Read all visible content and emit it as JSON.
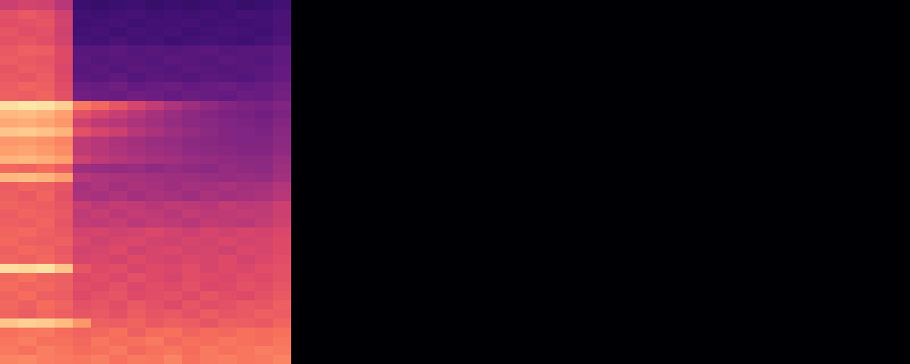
{
  "chart_data": {
    "type": "heatmap",
    "x": [
      0,
      1,
      2,
      3,
      4,
      5,
      6,
      7,
      8,
      9,
      10,
      11,
      12,
      13,
      14,
      15
    ],
    "y": [
      0,
      1,
      2,
      3,
      4,
      5,
      6,
      7,
      8,
      9,
      10,
      11,
      12,
      13,
      14,
      15,
      16,
      17,
      18,
      19,
      20,
      21,
      22,
      23,
      24,
      25,
      26,
      27,
      28,
      29,
      30,
      31,
      32,
      33,
      34,
      35,
      36,
      37,
      38,
      39
    ],
    "cells": [
      [
        0.74,
        0.75,
        0.73,
        0.72,
        0.71,
        0.73,
        0.7,
        0.72,
        0.71,
        0.74,
        0.7,
        0.72,
        0.73,
        0.71,
        0.72,
        0.74
      ],
      [
        0.72,
        0.7,
        0.73,
        0.71,
        0.69,
        0.7,
        0.72,
        0.68,
        0.7,
        0.71,
        0.69,
        0.72,
        0.7,
        0.71,
        0.73,
        0.72
      ],
      [
        0.71,
        0.73,
        0.7,
        0.7,
        0.68,
        0.71,
        0.69,
        0.7,
        0.72,
        0.68,
        0.7,
        0.69,
        0.71,
        0.7,
        0.69,
        0.71
      ],
      [
        0.7,
        0.71,
        0.72,
        0.69,
        0.67,
        0.68,
        0.7,
        0.66,
        0.69,
        0.7,
        0.67,
        0.69,
        0.68,
        0.7,
        0.69,
        0.7
      ],
      [
        0.88,
        0.9,
        0.89,
        0.86,
        0.78,
        0.66,
        0.65,
        0.67,
        0.64,
        0.66,
        0.65,
        0.63,
        0.66,
        0.65,
        0.64,
        0.67
      ],
      [
        0.67,
        0.65,
        0.68,
        0.66,
        0.63,
        0.64,
        0.62,
        0.65,
        0.63,
        0.64,
        0.62,
        0.65,
        0.63,
        0.64,
        0.66,
        0.65
      ],
      [
        0.68,
        0.66,
        0.69,
        0.67,
        0.62,
        0.63,
        0.61,
        0.64,
        0.62,
        0.6,
        0.63,
        0.61,
        0.62,
        0.64,
        0.63,
        0.66
      ],
      [
        0.67,
        0.69,
        0.66,
        0.65,
        0.6,
        0.62,
        0.63,
        0.6,
        0.61,
        0.62,
        0.6,
        0.63,
        0.61,
        0.6,
        0.62,
        0.64
      ],
      [
        0.69,
        0.67,
        0.68,
        0.66,
        0.61,
        0.6,
        0.62,
        0.59,
        0.61,
        0.6,
        0.62,
        0.59,
        0.6,
        0.62,
        0.61,
        0.63
      ],
      [
        0.68,
        0.7,
        0.67,
        0.66,
        0.6,
        0.61,
        0.59,
        0.62,
        0.6,
        0.58,
        0.61,
        0.6,
        0.59,
        0.61,
        0.6,
        0.62
      ],
      [
        0.93,
        0.92,
        0.94,
        0.88,
        0.63,
        0.6,
        0.61,
        0.58,
        0.6,
        0.59,
        0.61,
        0.58,
        0.6,
        0.59,
        0.61,
        0.62
      ],
      [
        0.67,
        0.66,
        0.68,
        0.65,
        0.58,
        0.59,
        0.57,
        0.6,
        0.58,
        0.57,
        0.59,
        0.58,
        0.6,
        0.57,
        0.59,
        0.61
      ],
      [
        0.66,
        0.68,
        0.67,
        0.64,
        0.57,
        0.58,
        0.6,
        0.56,
        0.58,
        0.59,
        0.57,
        0.58,
        0.56,
        0.59,
        0.58,
        0.6
      ],
      [
        0.68,
        0.66,
        0.65,
        0.66,
        0.59,
        0.56,
        0.58,
        0.59,
        0.57,
        0.56,
        0.58,
        0.57,
        0.59,
        0.57,
        0.58,
        0.6
      ],
      [
        0.67,
        0.68,
        0.66,
        0.64,
        0.57,
        0.58,
        0.56,
        0.57,
        0.59,
        0.57,
        0.55,
        0.58,
        0.56,
        0.58,
        0.57,
        0.59
      ],
      [
        0.66,
        0.65,
        0.67,
        0.63,
        0.53,
        0.52,
        0.54,
        0.51,
        0.53,
        0.52,
        0.5,
        0.53,
        0.52,
        0.51,
        0.53,
        0.56
      ],
      [
        0.65,
        0.67,
        0.66,
        0.64,
        0.52,
        0.54,
        0.51,
        0.53,
        0.52,
        0.5,
        0.53,
        0.51,
        0.52,
        0.53,
        0.52,
        0.55
      ],
      [
        0.67,
        0.66,
        0.65,
        0.63,
        0.54,
        0.51,
        0.53,
        0.52,
        0.5,
        0.52,
        0.51,
        0.5,
        0.53,
        0.51,
        0.52,
        0.55
      ],
      [
        0.66,
        0.64,
        0.67,
        0.62,
        0.47,
        0.46,
        0.48,
        0.45,
        0.47,
        0.46,
        0.44,
        0.47,
        0.45,
        0.46,
        0.47,
        0.5
      ],
      [
        0.65,
        0.67,
        0.66,
        0.63,
        0.46,
        0.48,
        0.45,
        0.47,
        0.46,
        0.44,
        0.46,
        0.45,
        0.47,
        0.45,
        0.46,
        0.49
      ],
      [
        0.85,
        0.86,
        0.84,
        0.8,
        0.5,
        0.48,
        0.47,
        0.46,
        0.45,
        0.44,
        0.44,
        0.43,
        0.42,
        0.43,
        0.42,
        0.45
      ],
      [
        0.68,
        0.67,
        0.69,
        0.65,
        0.44,
        0.43,
        0.42,
        0.43,
        0.41,
        0.42,
        0.41,
        0.4,
        0.42,
        0.41,
        0.4,
        0.44
      ],
      [
        0.84,
        0.85,
        0.83,
        0.8,
        0.56,
        0.52,
        0.5,
        0.48,
        0.46,
        0.45,
        0.43,
        0.42,
        0.41,
        0.4,
        0.4,
        0.43
      ],
      [
        0.8,
        0.81,
        0.79,
        0.76,
        0.52,
        0.5,
        0.48,
        0.46,
        0.44,
        0.43,
        0.41,
        0.4,
        0.39,
        0.38,
        0.38,
        0.41
      ],
      [
        0.78,
        0.79,
        0.77,
        0.74,
        0.52,
        0.5,
        0.47,
        0.45,
        0.43,
        0.42,
        0.4,
        0.39,
        0.38,
        0.37,
        0.37,
        0.4
      ],
      [
        0.88,
        0.89,
        0.87,
        0.84,
        0.62,
        0.58,
        0.55,
        0.5,
        0.47,
        0.44,
        0.42,
        0.4,
        0.38,
        0.37,
        0.36,
        0.39
      ],
      [
        0.82,
        0.83,
        0.81,
        0.78,
        0.56,
        0.52,
        0.5,
        0.47,
        0.45,
        0.42,
        0.4,
        0.39,
        0.37,
        0.36,
        0.35,
        0.38
      ],
      [
        0.85,
        0.86,
        0.84,
        0.8,
        0.62,
        0.58,
        0.54,
        0.5,
        0.46,
        0.43,
        0.4,
        0.38,
        0.36,
        0.35,
        0.33,
        0.36
      ],
      [
        0.93,
        0.95,
        0.94,
        0.9,
        0.72,
        0.68,
        0.63,
        0.58,
        0.53,
        0.48,
        0.44,
        0.41,
        0.38,
        0.36,
        0.35,
        0.37
      ],
      [
        0.66,
        0.65,
        0.67,
        0.62,
        0.33,
        0.32,
        0.31,
        0.33,
        0.32,
        0.3,
        0.32,
        0.31,
        0.3,
        0.32,
        0.31,
        0.34
      ],
      [
        0.65,
        0.67,
        0.66,
        0.61,
        0.32,
        0.31,
        0.33,
        0.3,
        0.31,
        0.32,
        0.3,
        0.31,
        0.32,
        0.3,
        0.31,
        0.33
      ],
      [
        0.64,
        0.63,
        0.65,
        0.6,
        0.28,
        0.27,
        0.29,
        0.26,
        0.28,
        0.27,
        0.26,
        0.28,
        0.27,
        0.26,
        0.28,
        0.3
      ],
      [
        0.63,
        0.65,
        0.64,
        0.59,
        0.27,
        0.28,
        0.26,
        0.28,
        0.27,
        0.26,
        0.28,
        0.27,
        0.26,
        0.27,
        0.28,
        0.3
      ],
      [
        0.65,
        0.64,
        0.63,
        0.6,
        0.28,
        0.26,
        0.27,
        0.27,
        0.26,
        0.28,
        0.27,
        0.26,
        0.28,
        0.27,
        0.26,
        0.29
      ],
      [
        0.64,
        0.66,
        0.65,
        0.6,
        0.27,
        0.27,
        0.28,
        0.26,
        0.27,
        0.26,
        0.27,
        0.28,
        0.26,
        0.27,
        0.27,
        0.29
      ],
      [
        0.62,
        0.63,
        0.61,
        0.57,
        0.23,
        0.22,
        0.24,
        0.22,
        0.23,
        0.21,
        0.22,
        0.23,
        0.22,
        0.21,
        0.23,
        0.25
      ],
      [
        0.63,
        0.61,
        0.62,
        0.56,
        0.22,
        0.23,
        0.21,
        0.23,
        0.22,
        0.23,
        0.21,
        0.22,
        0.23,
        0.22,
        0.21,
        0.24
      ],
      [
        0.61,
        0.62,
        0.63,
        0.57,
        0.21,
        0.22,
        0.23,
        0.21,
        0.22,
        0.22,
        0.23,
        0.21,
        0.22,
        0.21,
        0.22,
        0.24
      ],
      [
        0.62,
        0.64,
        0.62,
        0.56,
        0.22,
        0.21,
        0.22,
        0.23,
        0.21,
        0.22,
        0.21,
        0.22,
        0.21,
        0.23,
        0.22,
        0.24
      ],
      [
        0.55,
        0.57,
        0.56,
        0.5,
        0.2,
        0.19,
        0.2,
        0.21,
        0.19,
        0.2,
        0.19,
        0.2,
        0.21,
        0.19,
        0.2,
        0.22
      ]
    ],
    "xlim": [
      -0.5,
      49.5
    ],
    "ylim": [
      -0.5,
      39.5
    ],
    "zlim": [
      0,
      1
    ],
    "tick_labels": false,
    "grid": false
  }
}
